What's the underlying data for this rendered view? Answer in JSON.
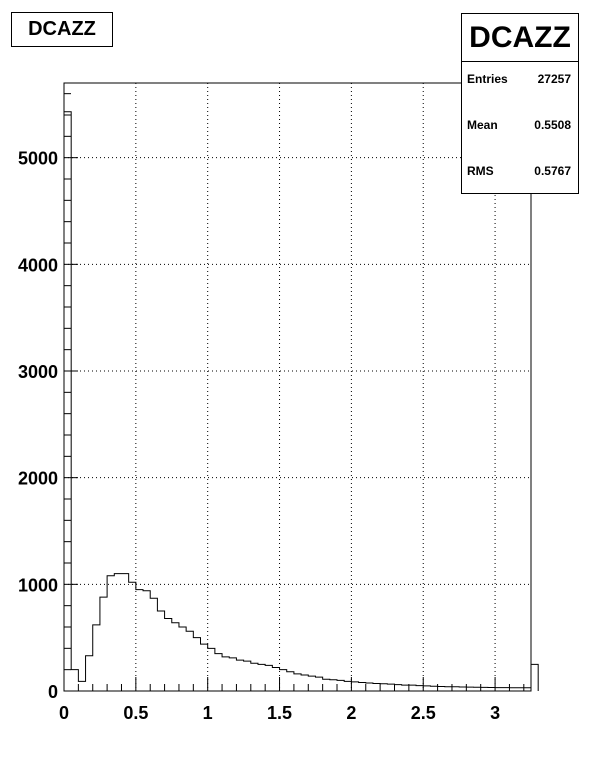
{
  "chart_data": {
    "type": "histogram",
    "title": "DCAZZ",
    "xlabel": "",
    "ylabel": "",
    "xlim": [
      0,
      3.25
    ],
    "ylim": [
      0,
      5700
    ],
    "grid": true,
    "bin_width": 0.05,
    "x_ticks": [
      0,
      0.5,
      1,
      1.5,
      2,
      2.5,
      3
    ],
    "x_tick_labels": [
      "0",
      "0.5",
      "1",
      "1.5",
      "2",
      "2.5",
      "3"
    ],
    "y_ticks": [
      0,
      1000,
      2000,
      3000,
      4000,
      5000
    ],
    "y_tick_labels": [
      "0",
      "1000",
      "2000",
      "3000",
      "4000",
      "5000"
    ],
    "values": [
      5430,
      200,
      90,
      330,
      620,
      880,
      1080,
      1100,
      1100,
      1020,
      950,
      940,
      870,
      750,
      680,
      640,
      600,
      560,
      500,
      440,
      400,
      350,
      320,
      310,
      290,
      280,
      260,
      250,
      240,
      220,
      200,
      180,
      160,
      150,
      140,
      130,
      110,
      105,
      100,
      90,
      85,
      80,
      75,
      70,
      68,
      65,
      60,
      55,
      55,
      50,
      48,
      45,
      42,
      40,
      40,
      38,
      36,
      35,
      34,
      33,
      32,
      32,
      30,
      30,
      30,
      250
    ]
  },
  "title_box": {
    "label": "DCAZZ"
  },
  "stats": {
    "title": "DCAZZ",
    "entries_label": "Entries",
    "entries_value": "27257",
    "mean_label": "Mean",
    "mean_value": "0.5508",
    "rms_label": "RMS",
    "rms_value": "0.5767"
  }
}
